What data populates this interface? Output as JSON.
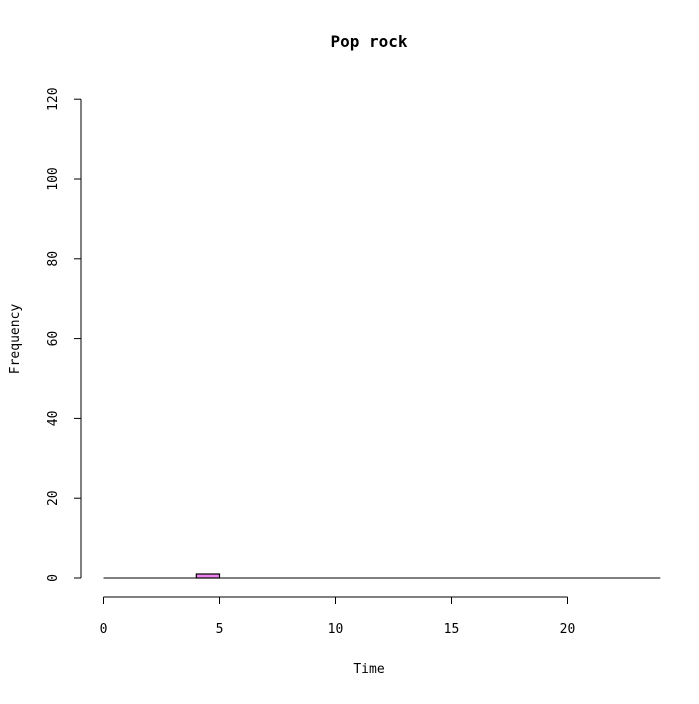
{
  "chart_data": {
    "type": "bar",
    "title": "Pop rock",
    "xlabel": "Time",
    "ylabel": "Frequency",
    "xlim": [
      0,
      24
    ],
    "ylim": [
      0,
      120
    ],
    "x_ticks": [
      "0",
      "5",
      "10",
      "15",
      "20"
    ],
    "y_ticks": [
      "0",
      "20",
      "40",
      "60",
      "80",
      "100",
      "120"
    ],
    "bins": [
      {
        "start": 0,
        "end": 1,
        "count": 0
      },
      {
        "start": 1,
        "end": 2,
        "count": 0
      },
      {
        "start": 2,
        "end": 3,
        "count": 0
      },
      {
        "start": 3,
        "end": 4,
        "count": 0
      },
      {
        "start": 4,
        "end": 5,
        "count": 1
      },
      {
        "start": 5,
        "end": 6,
        "count": 0
      },
      {
        "start": 6,
        "end": 7,
        "count": 0
      },
      {
        "start": 7,
        "end": 8,
        "count": 0
      },
      {
        "start": 8,
        "end": 9,
        "count": 0
      },
      {
        "start": 9,
        "end": 10,
        "count": 0
      },
      {
        "start": 10,
        "end": 11,
        "count": 0
      },
      {
        "start": 11,
        "end": 12,
        "count": 0
      },
      {
        "start": 12,
        "end": 13,
        "count": 0
      },
      {
        "start": 13,
        "end": 14,
        "count": 0
      },
      {
        "start": 14,
        "end": 15,
        "count": 0
      },
      {
        "start": 15,
        "end": 16,
        "count": 0
      },
      {
        "start": 16,
        "end": 17,
        "count": 0
      },
      {
        "start": 17,
        "end": 18,
        "count": 0
      },
      {
        "start": 18,
        "end": 19,
        "count": 0
      },
      {
        "start": 19,
        "end": 20,
        "count": 0
      },
      {
        "start": 20,
        "end": 21,
        "count": 0
      },
      {
        "start": 21,
        "end": 22,
        "count": 0
      },
      {
        "start": 22,
        "end": 23,
        "count": 0
      },
      {
        "start": 23,
        "end": 24,
        "count": 0
      }
    ],
    "bar_color": "#ee82ee",
    "grid": false,
    "legend": "none"
  }
}
